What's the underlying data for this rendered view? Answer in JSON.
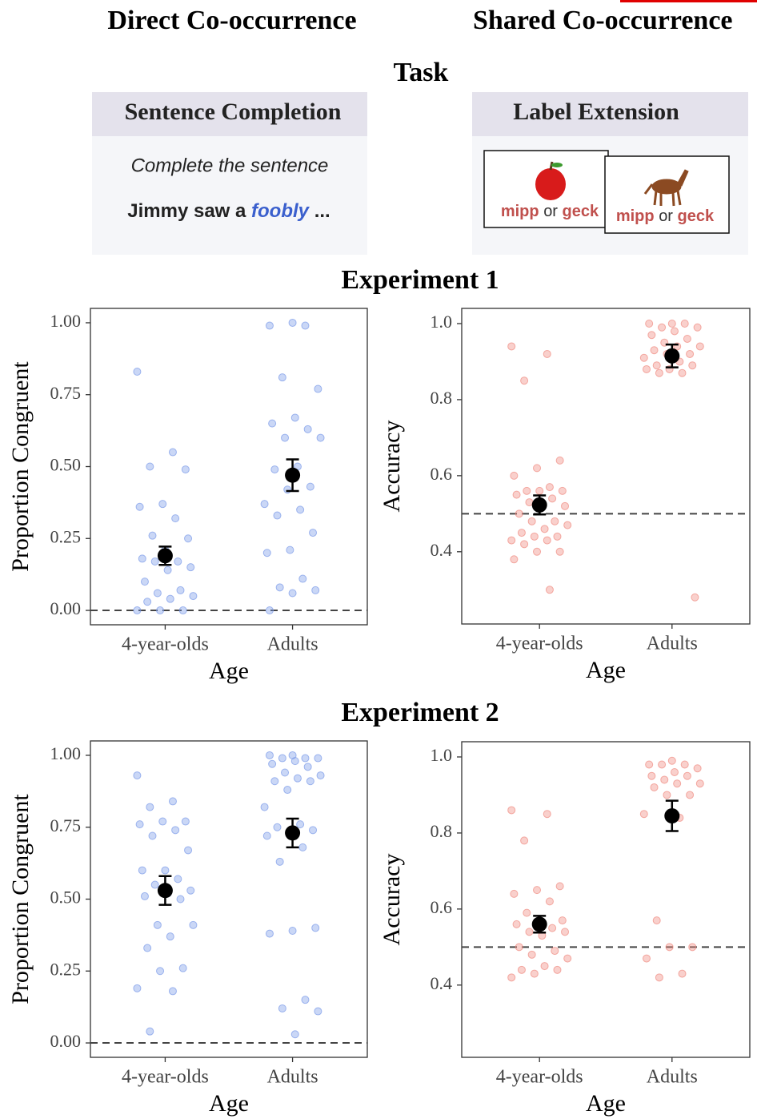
{
  "header": {
    "left": "Direct Co-occurrence",
    "right": "Shared Co-occurrence",
    "task": "Task"
  },
  "task": {
    "sentence_completion": {
      "title": "Sentence Completion",
      "prompt": "Complete the sentence",
      "example": [
        "Jimmy saw a",
        "foobly",
        "..."
      ]
    },
    "label_extension": {
      "title": "Label Extension",
      "cards": [
        [
          "mipp",
          "or",
          "geck"
        ],
        [
          "mipp",
          "or",
          "geck"
        ]
      ]
    }
  },
  "experiments": [
    "Experiment 1",
    "Experiment 2"
  ],
  "chart_data": [
    {
      "type": "strip",
      "categories": [
        "4-year-olds",
        "Adults"
      ],
      "xlabel": "Age",
      "ylabel": "Proportion Congruent",
      "color": "#7b9ae8",
      "ylim": [
        -0.05,
        1.05
      ],
      "yticks": [
        {
          "value": 0,
          "label": "0.00"
        },
        0.25,
        {
          "value": 0.5,
          "label": "0.50"
        },
        0.75,
        {
          "value": 1,
          "label": "1.00"
        }
      ],
      "reference_line": 0,
      "points": [
        [
          0.83,
          0.55,
          0.5,
          0.49,
          0.37,
          0.36,
          0.32,
          0.26,
          0.25,
          0.21,
          0.18,
          0.17,
          0.17,
          0.15,
          0.14,
          0.1,
          0.07,
          0.06,
          0.05,
          0.04,
          0.03,
          0,
          0,
          0
        ],
        [
          1,
          0.99,
          0.99,
          0.81,
          0.77,
          0.67,
          0.65,
          0.63,
          0.6,
          0.6,
          0.5,
          0.49,
          0.43,
          0.42,
          0.37,
          0.35,
          0.33,
          0.27,
          0.21,
          0.2,
          0.11,
          0.08,
          0.07,
          0.06,
          0
        ]
      ],
      "means": [
        0.19,
        0.47
      ],
      "errors": [
        0.032,
        0.055
      ]
    },
    {
      "type": "strip",
      "categories": [
        "4-year-olds",
        "Adults"
      ],
      "xlabel": "Age",
      "ylabel": "Accuracy",
      "color": "#f08a80",
      "ylim": [
        0.21,
        1.04
      ],
      "yticks": [
        0.4,
        0.6,
        0.8,
        {
          "value": 1,
          "label": "1.0"
        }
      ],
      "reference_line": 0.5,
      "points": [
        [
          0.94,
          0.92,
          0.85,
          0.64,
          0.62,
          0.6,
          0.57,
          0.56,
          0.56,
          0.56,
          0.55,
          0.54,
          0.53,
          0.52,
          0.52,
          0.5,
          0.48,
          0.48,
          0.47,
          0.46,
          0.45,
          0.44,
          0.44,
          0.43,
          0.43,
          0.42,
          0.4,
          0.4,
          0.38,
          0.3
        ],
        [
          1,
          1,
          1,
          0.99,
          0.99,
          0.98,
          0.97,
          0.96,
          0.95,
          0.94,
          0.94,
          0.93,
          0.92,
          0.92,
          0.91,
          0.9,
          0.89,
          0.89,
          0.88,
          0.88,
          0.87,
          0.87,
          0.28
        ]
      ],
      "means": [
        0.523,
        0.915
      ],
      "errors": [
        0.025,
        0.03
      ]
    },
    {
      "type": "strip",
      "categories": [
        "4-year-olds",
        "Adults"
      ],
      "xlabel": "Age",
      "ylabel": "Proportion Congruent",
      "color": "#7b9ae8",
      "ylim": [
        -0.05,
        1.05
      ],
      "yticks": [
        {
          "value": 0,
          "label": "0.00"
        },
        0.25,
        {
          "value": 0.5,
          "label": "0.50"
        },
        0.75,
        {
          "value": 1,
          "label": "1.00"
        }
      ],
      "reference_line": 0,
      "points": [
        [
          0.93,
          0.84,
          0.82,
          0.77,
          0.77,
          0.76,
          0.74,
          0.72,
          0.67,
          0.6,
          0.6,
          0.57,
          0.55,
          0.53,
          0.52,
          0.51,
          0.5,
          0.41,
          0.41,
          0.37,
          0.33,
          0.26,
          0.25,
          0.19,
          0.18,
          0.04
        ],
        [
          1,
          1,
          0.99,
          0.99,
          0.99,
          0.98,
          0.97,
          0.96,
          0.94,
          0.93,
          0.92,
          0.91,
          0.91,
          0.88,
          0.82,
          0.76,
          0.75,
          0.74,
          0.73,
          0.72,
          0.68,
          0.63,
          0.4,
          0.39,
          0.38,
          0.15,
          0.12,
          0.11,
          0.03
        ]
      ],
      "means": [
        0.53,
        0.73
      ],
      "errors": [
        0.05,
        0.05
      ]
    },
    {
      "type": "strip",
      "categories": [
        "4-year-olds",
        "Adults"
      ],
      "xlabel": "Age",
      "ylabel": "Accuracy",
      "color": "#f08a80",
      "ylim": [
        0.21,
        1.04
      ],
      "yticks": [
        0.4,
        0.6,
        0.8,
        {
          "value": 1,
          "label": "1.0"
        }
      ],
      "reference_line": 0.5,
      "points": [
        [
          0.86,
          0.85,
          0.78,
          0.66,
          0.65,
          0.64,
          0.62,
          0.59,
          0.57,
          0.56,
          0.56,
          0.55,
          0.54,
          0.54,
          0.53,
          0.5,
          0.49,
          0.48,
          0.47,
          0.45,
          0.44,
          0.44,
          0.43,
          0.42
        ],
        [
          0.99,
          0.98,
          0.98,
          0.98,
          0.97,
          0.96,
          0.95,
          0.95,
          0.94,
          0.93,
          0.93,
          0.92,
          0.9,
          0.9,
          0.85,
          0.84,
          0.57,
          0.5,
          0.5,
          0.47,
          0.43,
          0.42
        ]
      ],
      "means": [
        0.56,
        0.845
      ],
      "errors": [
        0.022,
        0.04
      ]
    }
  ]
}
